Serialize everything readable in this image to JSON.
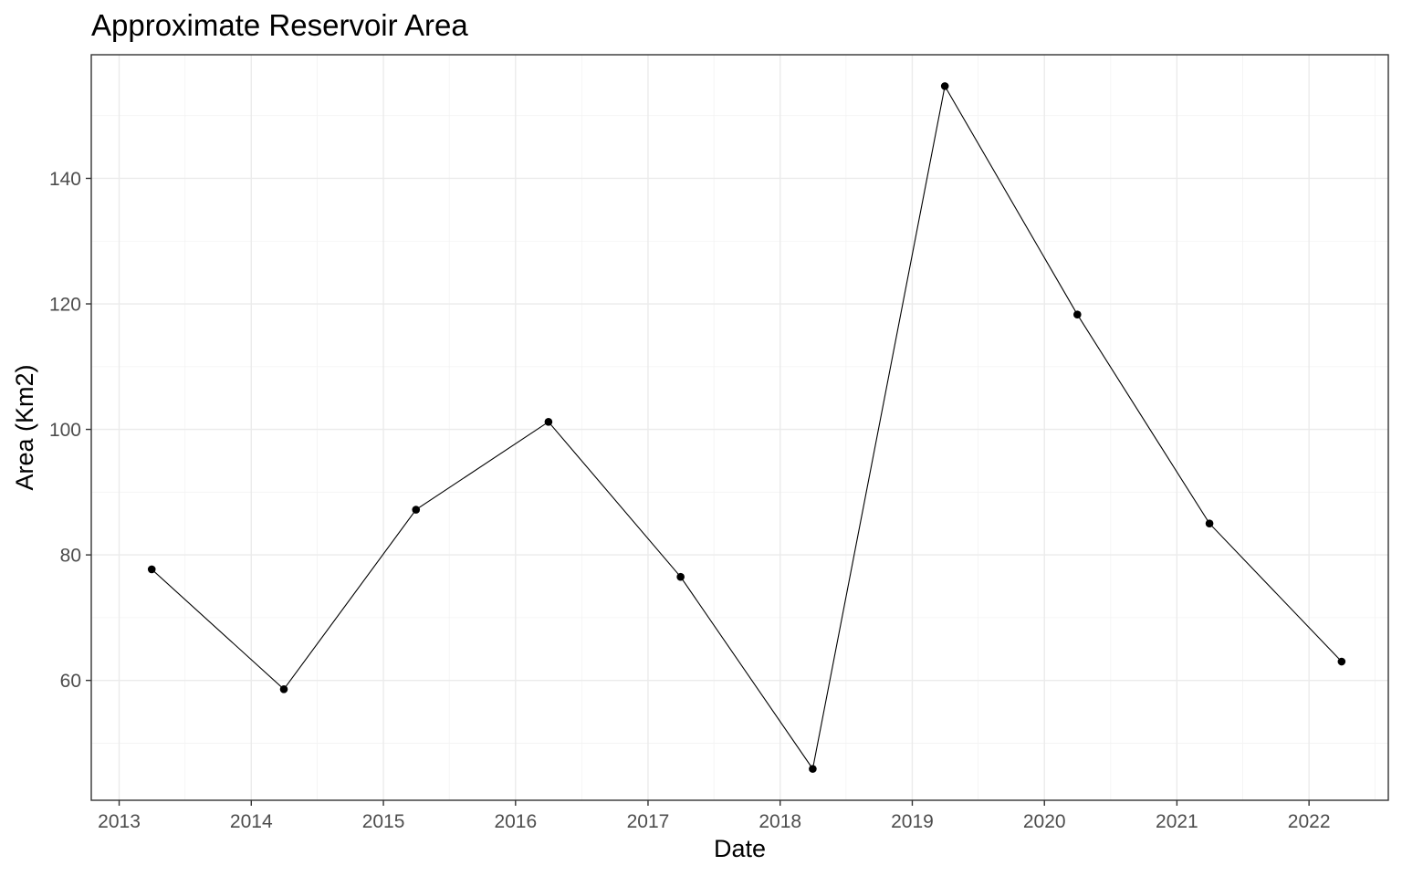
{
  "chart_data": {
    "type": "line",
    "title": "Approximate Reservoir Area",
    "xlabel": "Date",
    "ylabel": "Area (Km2)",
    "x": [
      "2013-04-01",
      "2014-04-01",
      "2015-04-01",
      "2016-04-01",
      "2017-04-01",
      "2018-04-01",
      "2019-04-01",
      "2020-04-01",
      "2021-04-01",
      "2022-04-01"
    ],
    "series": [
      {
        "values": [
          77.7,
          58.6,
          87.2,
          101.2,
          76.5,
          45.9,
          154.7,
          118.3,
          85.0,
          63.0
        ]
      }
    ],
    "xlim": [
      "2012-10-16",
      "2022-08-08"
    ],
    "ylim": [
      40.9,
      159.7
    ],
    "x_ticks": [
      "2013",
      "2014",
      "2015",
      "2016",
      "2017",
      "2018",
      "2019",
      "2020",
      "2021",
      "2022"
    ],
    "y_ticks": [
      60,
      80,
      100,
      120,
      140
    ],
    "grid": true,
    "legend": "none",
    "colors": {
      "line": "#000000",
      "point": "#000000",
      "grid": "#ebebeb",
      "border": "#333333"
    }
  }
}
